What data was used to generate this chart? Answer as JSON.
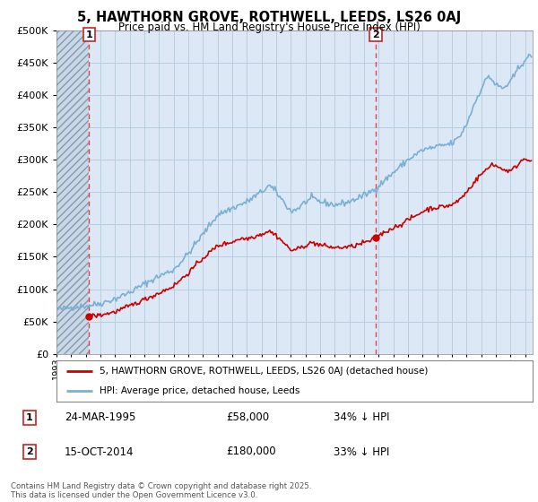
{
  "title1": "5, HAWTHORN GROVE, ROTHWELL, LEEDS, LS26 0AJ",
  "title2": "Price paid vs. HM Land Registry's House Price Index (HPI)",
  "background_color": "#ffffff",
  "plot_bg_color": "#dce8f5",
  "grid_color": "#b8cfe0",
  "hpi_color": "#7bafd4",
  "price_color": "#cc0000",
  "dashed_line_color": "#dd4444",
  "hatch_bg_color": "#c8d8e8",
  "ylim_min": 0,
  "ylim_max": 500000,
  "ytick_step": 50000,
  "sale1_year": 1995.23,
  "sale2_year": 2014.79,
  "sale1_price": 58000,
  "sale2_price": 180000,
  "sale1_date_label": "24-MAR-1995",
  "sale1_price_label": "£58,000",
  "sale1_hpi_label": "34% ↓ HPI",
  "sale2_date_label": "15-OCT-2014",
  "sale2_price_label": "£180,000",
  "sale2_hpi_label": "33% ↓ HPI",
  "legend1": "5, HAWTHORN GROVE, ROTHWELL, LEEDS, LS26 0AJ (detached house)",
  "legend2": "HPI: Average price, detached house, Leeds",
  "footer": "Contains HM Land Registry data © Crown copyright and database right 2025.\nThis data is licensed under the Open Government Licence v3.0.",
  "xmin": 1993.0,
  "xmax": 2025.5
}
